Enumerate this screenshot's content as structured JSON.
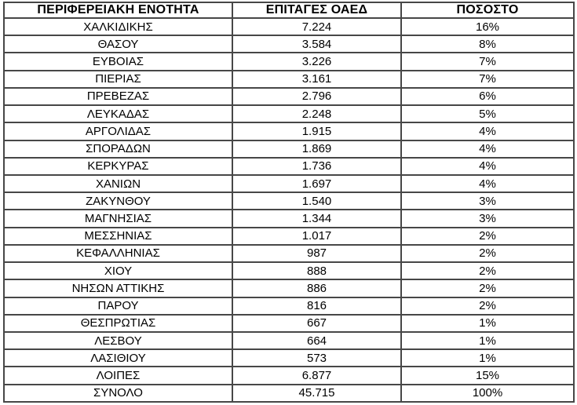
{
  "table": {
    "headers": [
      "ΠΕΡΙΦΕΡΕΙΑΚΗ ΕΝΟΤΗΤΑ",
      "ΕΠΙΤΑΓΕΣ ΟΑΕΔ",
      "ΠΟΣΟΣΤΟ"
    ],
    "rows": [
      [
        "ΧΑΛΚΙΔΙΚΗΣ",
        "7.224",
        "16%"
      ],
      [
        "ΘΑΣΟΥ",
        "3.584",
        "8%"
      ],
      [
        "ΕΥΒΟΙΑΣ",
        "3.226",
        "7%"
      ],
      [
        "ΠΙΕΡΙΑΣ",
        "3.161",
        "7%"
      ],
      [
        "ΠΡΕΒΕΖΑΣ",
        "2.796",
        "6%"
      ],
      [
        "ΛΕΥΚΑΔΑΣ",
        "2.248",
        "5%"
      ],
      [
        "ΑΡΓΟΛΙΔΑΣ",
        "1.915",
        "4%"
      ],
      [
        "ΣΠΟΡΑΔΩΝ",
        "1.869",
        "4%"
      ],
      [
        "ΚΕΡΚΥΡΑΣ",
        "1.736",
        "4%"
      ],
      [
        "ΧΑΝΙΩΝ",
        "1.697",
        "4%"
      ],
      [
        "ΖΑΚΥΝΘΟΥ",
        "1.540",
        "3%"
      ],
      [
        "ΜΑΓΝΗΣΙΑΣ",
        "1.344",
        "3%"
      ],
      [
        "ΜΕΣΣΗΝΙΑΣ",
        "1.017",
        "2%"
      ],
      [
        "ΚΕΦΑΛΛΗΝΙΑΣ",
        "987",
        "2%"
      ],
      [
        "ΧΙΟΥ",
        "888",
        "2%"
      ],
      [
        "ΝΗΣΩΝ ΑΤΤΙΚΗΣ",
        "886",
        "2%"
      ],
      [
        "ΠΑΡΟΥ",
        "816",
        "2%"
      ],
      [
        "ΘΕΣΠΡΩΤΙΑΣ",
        "667",
        "1%"
      ],
      [
        "ΛΕΣΒΟΥ",
        "664",
        "1%"
      ],
      [
        "ΛΑΣΙΘΙΟΥ",
        "573",
        "1%"
      ],
      [
        "ΛΟΙΠΕΣ",
        "6.877",
        "15%"
      ],
      [
        "ΣΥΝΟΛΟ",
        "45.715",
        "100%"
      ]
    ],
    "border_color": "#474747",
    "text_color": "#000000",
    "background_color": "#ffffff"
  }
}
